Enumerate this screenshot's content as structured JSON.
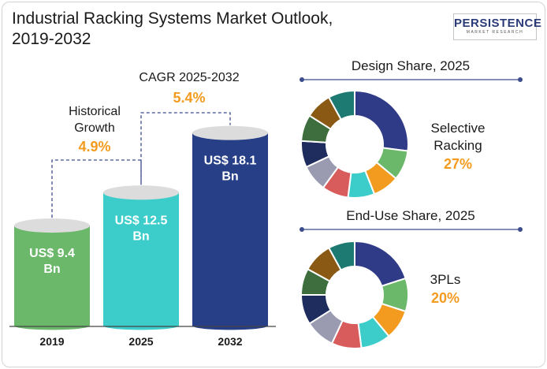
{
  "header": {
    "title_line1": "Industrial Racking Systems Market Outlook,",
    "title_line2": "2019-2032"
  },
  "logo": {
    "name": "PERSISTENCE",
    "tagline": "MARKET RESEARCH"
  },
  "colors": {
    "bar_2019": "#6bb86b",
    "bar_2025": "#3ccdcb",
    "bar_2032": "#273f87",
    "orange": "#f39b1f",
    "dashed": "#3d4c8c"
  },
  "annotations": {
    "historical_label_line1": "Historical",
    "historical_label_line2": "Growth",
    "historical_value": "4.9%",
    "cagr_label": "CAGR 2025-2032",
    "cagr_value": "5.4%"
  },
  "chart_data": [
    {
      "type": "bar",
      "categories": [
        "2019",
        "2025",
        "2032"
      ],
      "values": [
        9.4,
        12.5,
        18.1
      ],
      "data_labels": [
        {
          "line1": "US$ 9.4",
          "line2": "Bn"
        },
        {
          "line1": "US$ 12.5",
          "line2": "Bn"
        },
        {
          "line1": "US$ 18.1",
          "line2": "Bn"
        }
      ],
      "unit": "US$ Bn"
    },
    {
      "type": "pie",
      "title": "Design Share, 2025",
      "slices": [
        {
          "value": 27,
          "color": "#2f3b87"
        },
        {
          "value": 9,
          "color": "#6bb86b"
        },
        {
          "value": 8,
          "color": "#f39b1f"
        },
        {
          "value": 8,
          "color": "#3ccdcb"
        },
        {
          "value": 8,
          "color": "#d85c5c"
        },
        {
          "value": 8,
          "color": "#9a9bb0"
        },
        {
          "value": 8,
          "color": "#1f2c5e"
        },
        {
          "value": 8,
          "color": "#3e6e3e"
        },
        {
          "value": 8,
          "color": "#8a5a14"
        },
        {
          "value": 8,
          "color": "#1d7a72"
        }
      ],
      "callout": {
        "line1": "Selective",
        "line2": "Racking",
        "value": "27%"
      }
    },
    {
      "type": "pie",
      "title": "End-Use Share, 2025",
      "slices": [
        {
          "value": 20,
          "color": "#2f3b87"
        },
        {
          "value": 10,
          "color": "#6bb86b"
        },
        {
          "value": 9,
          "color": "#f39b1f"
        },
        {
          "value": 9,
          "color": "#3ccdcb"
        },
        {
          "value": 9,
          "color": "#d85c5c"
        },
        {
          "value": 9,
          "color": "#9a9bb0"
        },
        {
          "value": 9,
          "color": "#1f2c5e"
        },
        {
          "value": 8,
          "color": "#3e6e3e"
        },
        {
          "value": 9,
          "color": "#8a5a14"
        },
        {
          "value": 8,
          "color": "#1d7a72"
        }
      ],
      "callout": {
        "line1": "3PLs",
        "line2": "",
        "value": "20%"
      }
    }
  ]
}
